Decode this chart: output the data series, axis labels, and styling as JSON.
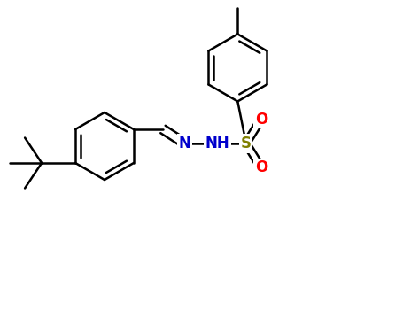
{
  "background_color": "#ffffff",
  "bond_color": "#000000",
  "bond_width": 1.8,
  "atom_colors": {
    "N": "#0000cc",
    "S": "#808000",
    "O": "#ff0000",
    "C": "#000000",
    "H": "#000000"
  },
  "font_size_atom": 11
}
